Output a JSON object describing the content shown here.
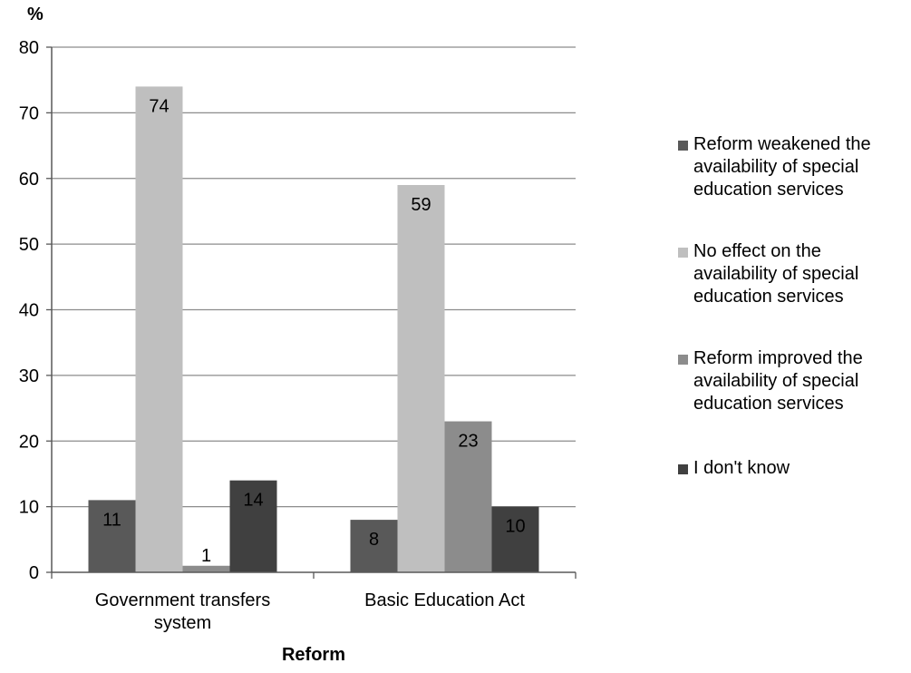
{
  "chart_data": {
    "type": "bar",
    "title": "",
    "ylabel": "%",
    "xlabel": "Reform",
    "ylim": [
      0,
      80
    ],
    "yticks": [
      0,
      10,
      20,
      30,
      40,
      50,
      60,
      70,
      80
    ],
    "grid": true,
    "legend_position": "right",
    "categories": [
      [
        "Government transfers",
        "system"
      ],
      [
        "Basic Education Act"
      ]
    ],
    "series": [
      {
        "name": "Reform weakened the availability of special education services",
        "legend_lines": [
          "Reform weakened the",
          "availability of special",
          "education services"
        ],
        "values": [
          11,
          8
        ],
        "color": "#595959"
      },
      {
        "name": "No effect on the availability of special education services",
        "legend_lines": [
          "No effect on the",
          "availability of special",
          "education services"
        ],
        "values": [
          74,
          59
        ],
        "color": "#bfbfbf"
      },
      {
        "name": "Reform improved the availability of special education services",
        "legend_lines": [
          "Reform improved the",
          "availability of special",
          "education services"
        ],
        "values": [
          1,
          23
        ],
        "color": "#8c8c8c"
      },
      {
        "name": "I don't know",
        "legend_lines": [
          "I don't know"
        ],
        "values": [
          14,
          10
        ],
        "color": "#404040"
      }
    ]
  }
}
